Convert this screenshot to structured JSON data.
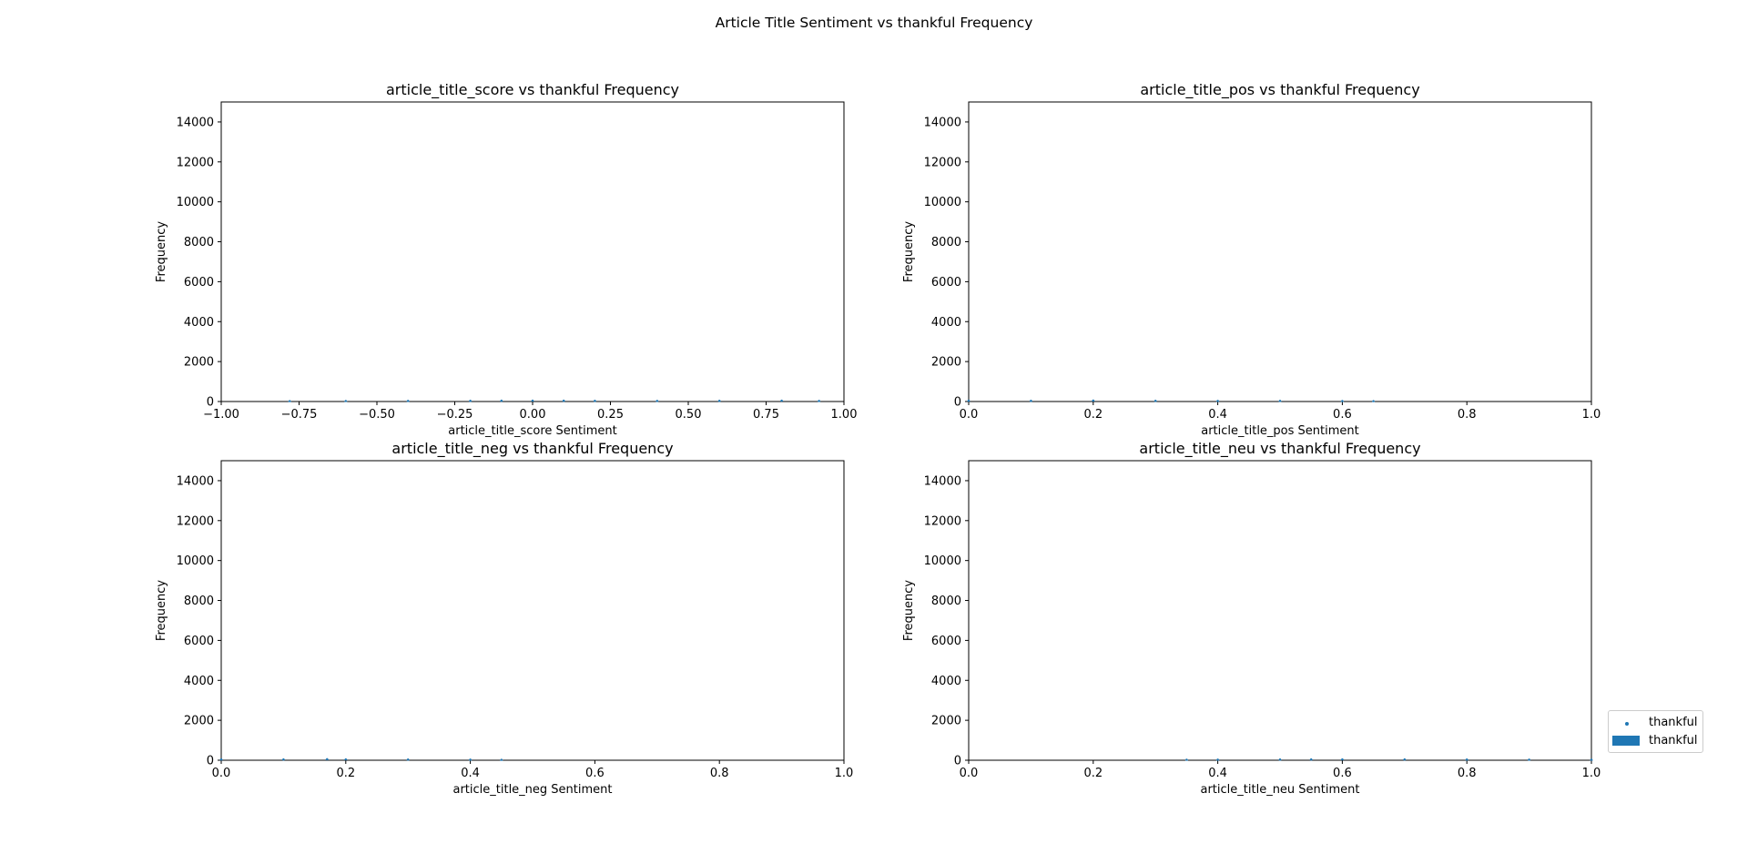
{
  "figure": {
    "title": "Article Title Sentiment vs thankful Frequency",
    "legend": {
      "placement": "lower-right outside",
      "entries": [
        {
          "label": "thankful",
          "marker": "point",
          "color": "#1f77b4"
        },
        {
          "label": "thankful",
          "marker": "bar",
          "color": "#1f77b4"
        }
      ]
    }
  },
  "chart_data": [
    {
      "type": "bar",
      "title": "article_title_score vs thankful Frequency",
      "xlabel": "article_title_score Sentiment",
      "ylabel": "Frequency",
      "xlim": [
        -1.0,
        1.0
      ],
      "ylim": [
        0,
        15000
      ],
      "xticks": [
        "−1.00",
        "−0.75",
        "−0.50",
        "−0.25",
        "0.00",
        "0.25",
        "0.50",
        "0.75",
        "1.00"
      ],
      "yticks": [
        "0",
        "2000",
        "4000",
        "6000",
        "8000",
        "10000",
        "12000",
        "14000"
      ],
      "grid": false,
      "series": [
        {
          "name": "thankful",
          "x": [
            -0.78,
            -0.6,
            -0.4,
            -0.2,
            -0.1,
            0.0,
            0.1,
            0.2,
            0.4,
            0.6,
            0.8,
            0.92
          ],
          "values": [
            20,
            25,
            30,
            35,
            40,
            45,
            40,
            35,
            30,
            35,
            45,
            30
          ],
          "color": "#1f77b4"
        }
      ]
    },
    {
      "type": "bar",
      "title": "article_title_pos vs thankful Frequency",
      "xlabel": "article_title_pos Sentiment",
      "ylabel": "Frequency",
      "xlim": [
        0.0,
        1.0
      ],
      "ylim": [
        0,
        15000
      ],
      "xticks": [
        "0.0",
        "0.2",
        "0.4",
        "0.6",
        "0.8",
        "1.0"
      ],
      "yticks": [
        "0",
        "2000",
        "4000",
        "6000",
        "8000",
        "10000",
        "12000",
        "14000"
      ],
      "grid": false,
      "series": [
        {
          "name": "thankful",
          "x": [
            0.0,
            0.1,
            0.2,
            0.3,
            0.4,
            0.5,
            0.6,
            0.65
          ],
          "values": [
            40,
            35,
            50,
            35,
            30,
            30,
            25,
            20
          ],
          "color": "#1f77b4"
        }
      ]
    },
    {
      "type": "bar",
      "title": "article_title_neg vs thankful Frequency",
      "xlabel": "article_title_neg Sentiment",
      "ylabel": "Frequency",
      "xlim": [
        0.0,
        1.0
      ],
      "ylim": [
        0,
        15000
      ],
      "xticks": [
        "0.0",
        "0.2",
        "0.4",
        "0.6",
        "0.8",
        "1.0"
      ],
      "yticks": [
        "0",
        "2000",
        "4000",
        "6000",
        "8000",
        "10000",
        "12000",
        "14000"
      ],
      "grid": false,
      "series": [
        {
          "name": "thankful",
          "x": [
            0.0,
            0.1,
            0.17,
            0.2,
            0.3,
            0.4,
            0.45
          ],
          "values": [
            40,
            40,
            55,
            45,
            35,
            30,
            20
          ],
          "color": "#1f77b4"
        }
      ]
    },
    {
      "type": "bar",
      "title": "article_title_neu vs thankful Frequency",
      "xlabel": "article_title_neu Sentiment",
      "ylabel": "Frequency",
      "xlim": [
        0.0,
        1.0
      ],
      "ylim": [
        0,
        15000
      ],
      "xticks": [
        "0.0",
        "0.2",
        "0.4",
        "0.6",
        "0.8",
        "1.0"
      ],
      "yticks": [
        "0",
        "2000",
        "4000",
        "6000",
        "8000",
        "10000",
        "12000",
        "14000"
      ],
      "grid": false,
      "series": [
        {
          "name": "thankful",
          "x": [
            0.35,
            0.4,
            0.5,
            0.55,
            0.6,
            0.7,
            0.8,
            0.9,
            1.0
          ],
          "values": [
            25,
            30,
            35,
            40,
            45,
            40,
            35,
            30,
            25
          ],
          "color": "#1f77b4"
        }
      ]
    }
  ]
}
